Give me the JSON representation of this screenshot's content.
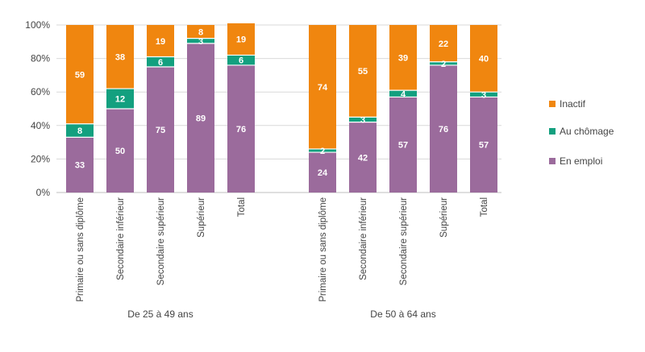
{
  "chart_data": {
    "type": "bar",
    "stacked": true,
    "title": "",
    "xlabel": "",
    "ylabel": "",
    "ylim": [
      0,
      100
    ],
    "y_ticks": [
      "0%",
      "20%",
      "40%",
      "60%",
      "80%",
      "100%"
    ],
    "grid": true,
    "legend_position": "right",
    "groups": [
      {
        "label": "De 25 à 49 ans",
        "categories": [
          "Primaire ou sans diplôme",
          "Secondaire inférieur",
          "Secondaire supérieur",
          "Supérieur",
          "Total"
        ]
      },
      {
        "label": "De 50 à 64 ans",
        "categories": [
          "Primaire ou sans diplôme",
          "Secondaire inférieur",
          "Secondaire supérieur",
          "Supérieur",
          "Total"
        ]
      }
    ],
    "series": [
      {
        "name": "En emploi",
        "color": "#9b6b9c",
        "values": [
          33,
          50,
          75,
          89,
          76,
          24,
          42,
          57,
          76,
          57
        ]
      },
      {
        "name": "Au chômage",
        "color": "#13a07f",
        "values": [
          8,
          12,
          6,
          3,
          6,
          2,
          3,
          4,
          2,
          3
        ]
      },
      {
        "name": "Inactif",
        "color": "#f0860f",
        "values": [
          59,
          38,
          19,
          8,
          19,
          74,
          55,
          39,
          22,
          40
        ]
      }
    ],
    "legend_order": [
      "Inactif",
      "Au chômage",
      "En emploi"
    ]
  }
}
